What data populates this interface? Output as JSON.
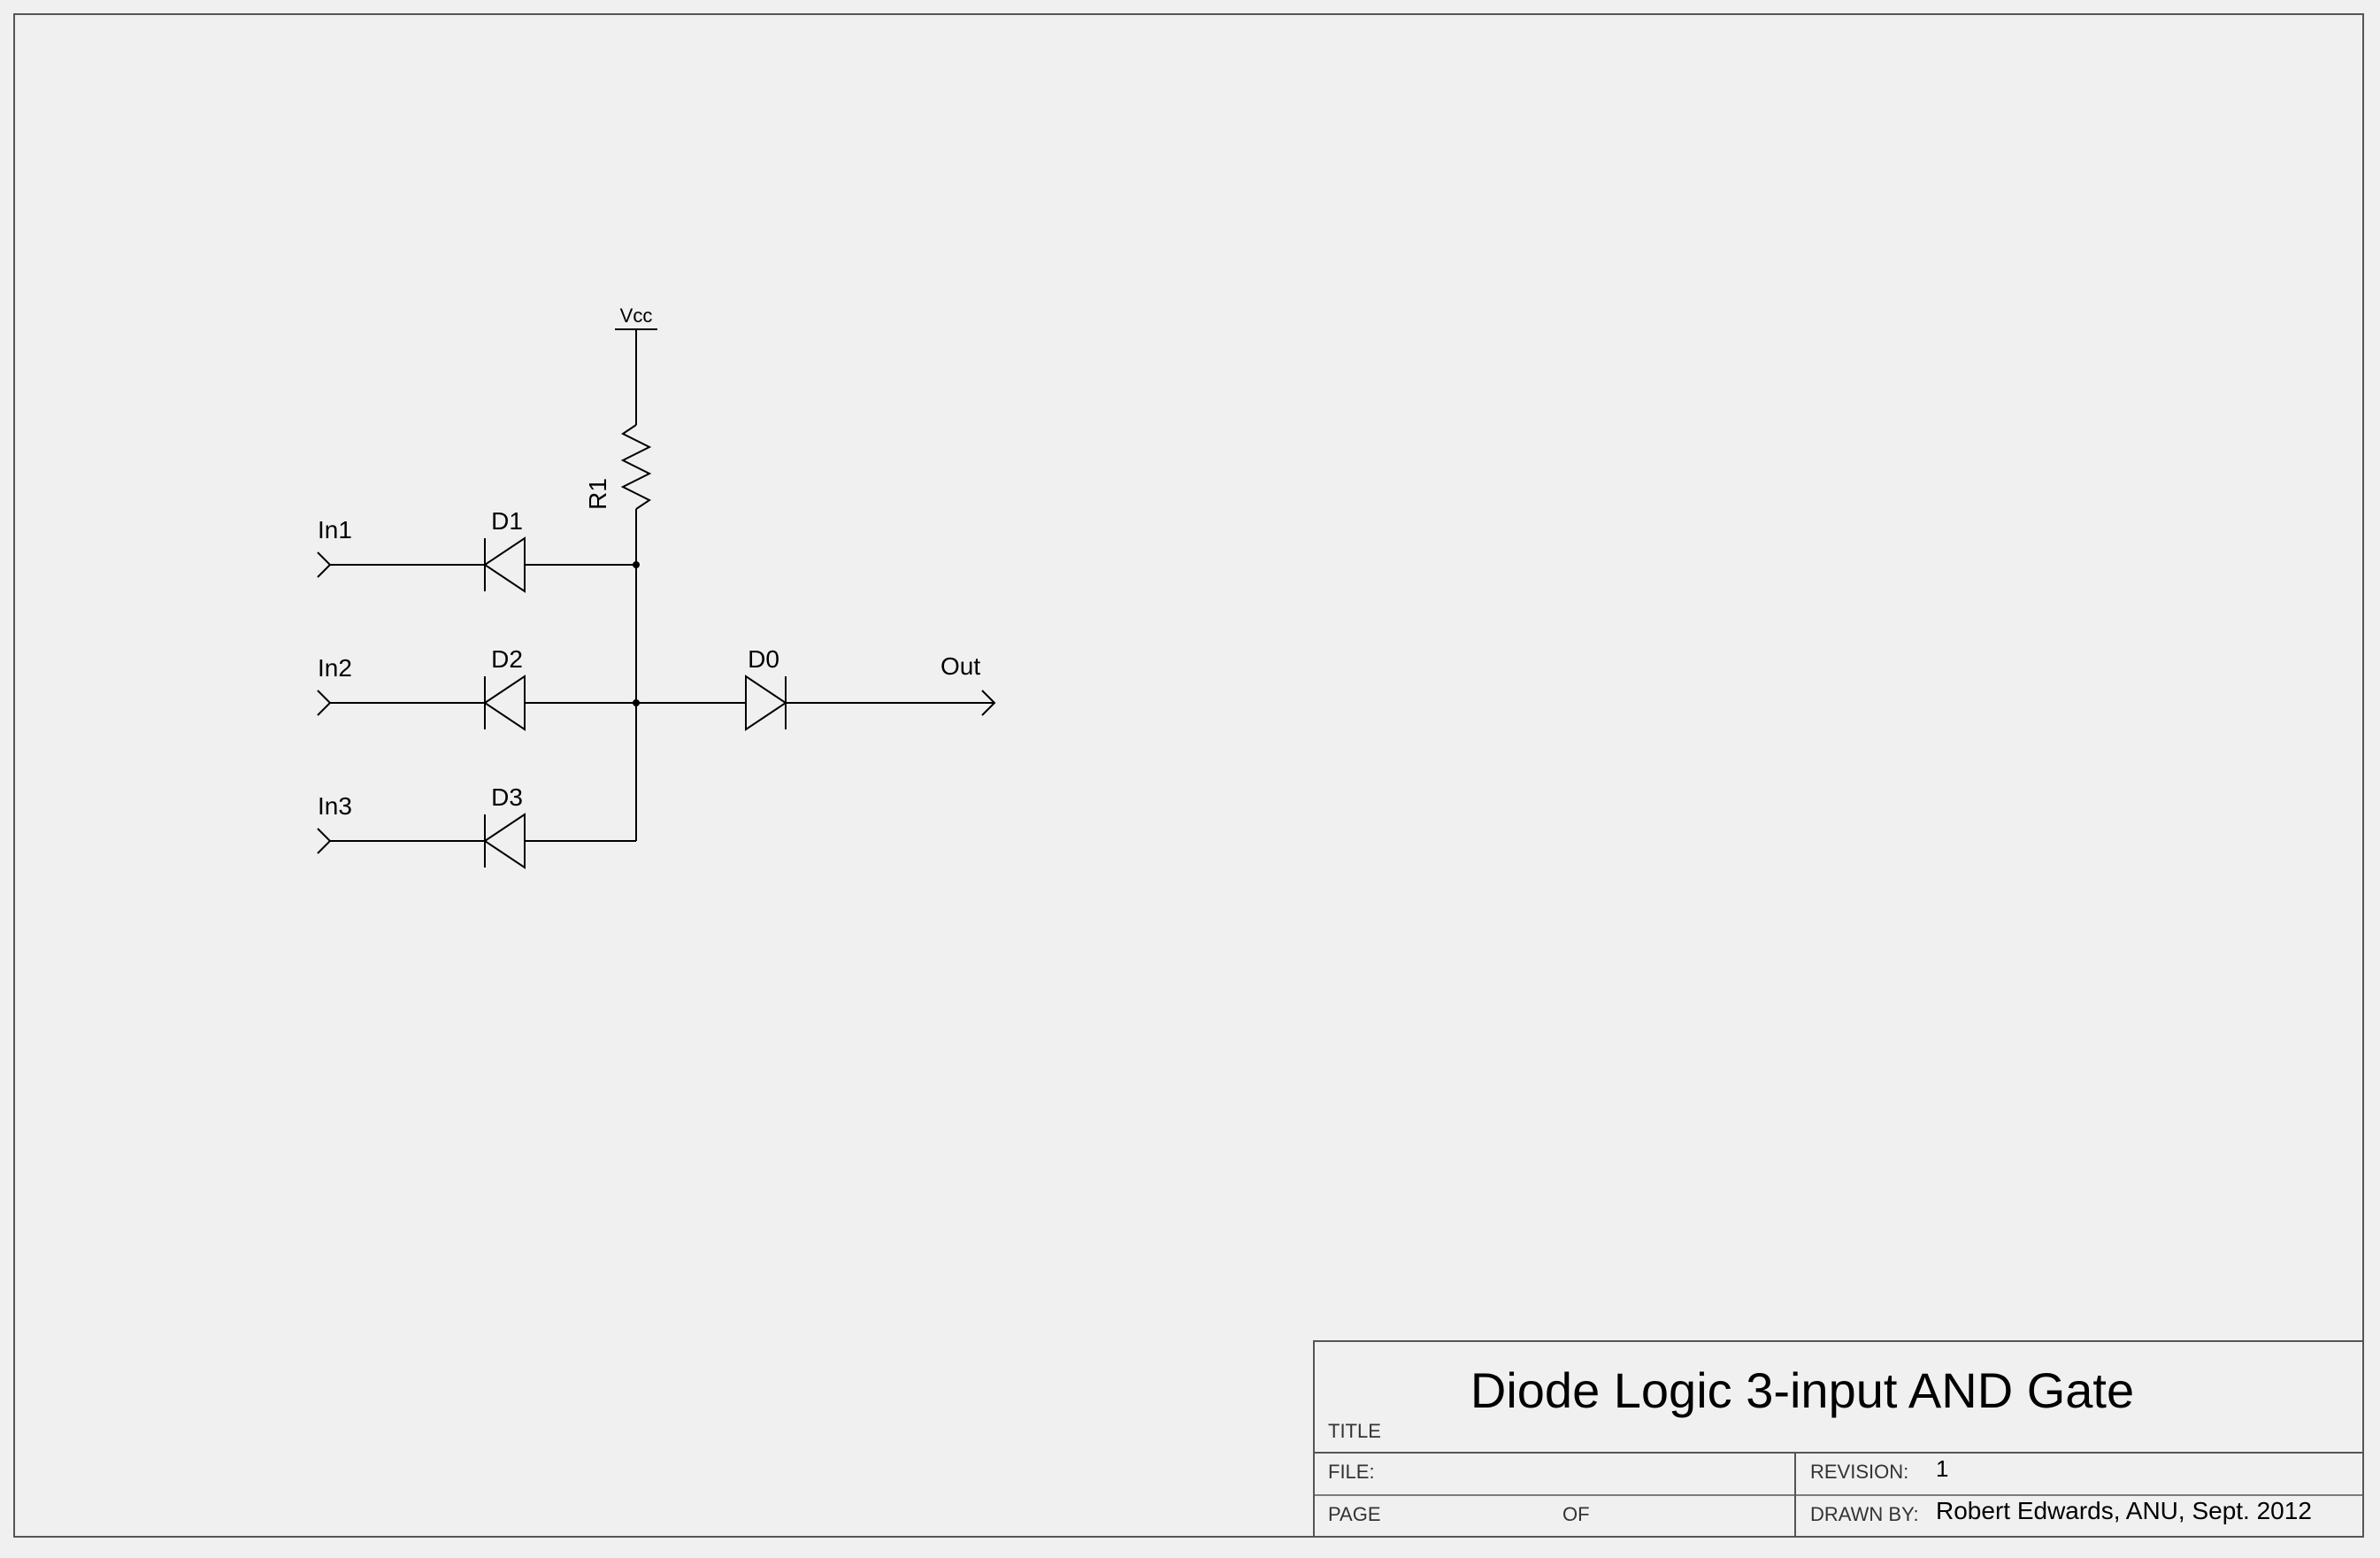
{
  "schematic": {
    "vcc": "Vcc",
    "resistor": "R1",
    "inputs": [
      "In1",
      "In2",
      "In3"
    ],
    "diodes": [
      "D1",
      "D2",
      "D3"
    ],
    "output_diode": "D0",
    "output": "Out"
  },
  "title_block": {
    "title_label": "TITLE",
    "title": "Diode Logic 3-input AND Gate",
    "file_label": "FILE:",
    "file": "",
    "revision_label": "REVISION:",
    "revision": "1",
    "page_label": "PAGE",
    "of_label": "OF",
    "drawn_by_label": "DRAWN BY:",
    "drawn_by": "Robert Edwards, ANU, Sept. 2012"
  }
}
